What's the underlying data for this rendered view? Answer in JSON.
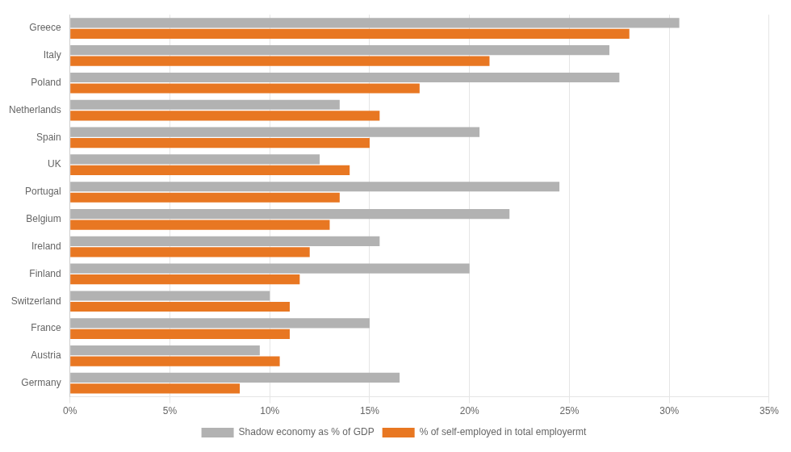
{
  "chart_data": {
    "type": "bar",
    "orientation": "horizontal",
    "categories": [
      "Greece",
      "Italy",
      "Poland",
      "Netherlands",
      "Spain",
      "UK",
      "Portugal",
      "Belgium",
      "Ireland",
      "Finland",
      "Switzerland",
      "France",
      "Austria",
      "Germany"
    ],
    "series": [
      {
        "name": "Shadow economy as % of GDP",
        "color": "#b2b2b2",
        "values": [
          30.5,
          27.0,
          27.5,
          13.5,
          20.5,
          12.5,
          24.5,
          22.0,
          15.5,
          20.0,
          10.0,
          15.0,
          9.5,
          16.5
        ]
      },
      {
        "name": "% of self-employed in total employermt",
        "color": "#e87722",
        "values": [
          28.0,
          21.0,
          17.5,
          15.5,
          15.0,
          14.0,
          13.5,
          13.0,
          12.0,
          11.5,
          11.0,
          11.0,
          10.5,
          8.5
        ]
      }
    ],
    "xlim": [
      0,
      35
    ],
    "xticks": [
      {
        "value": 0,
        "label": "0%"
      },
      {
        "value": 5,
        "label": "5%"
      },
      {
        "value": 10,
        "label": "10%"
      },
      {
        "value": 15,
        "label": "15%"
      },
      {
        "value": 20,
        "label": "20%"
      },
      {
        "value": 25,
        "label": "25%"
      },
      {
        "value": 30,
        "label": "30%"
      },
      {
        "value": 35,
        "label": "35%"
      }
    ],
    "grid": "x",
    "legend": "bottom"
  }
}
